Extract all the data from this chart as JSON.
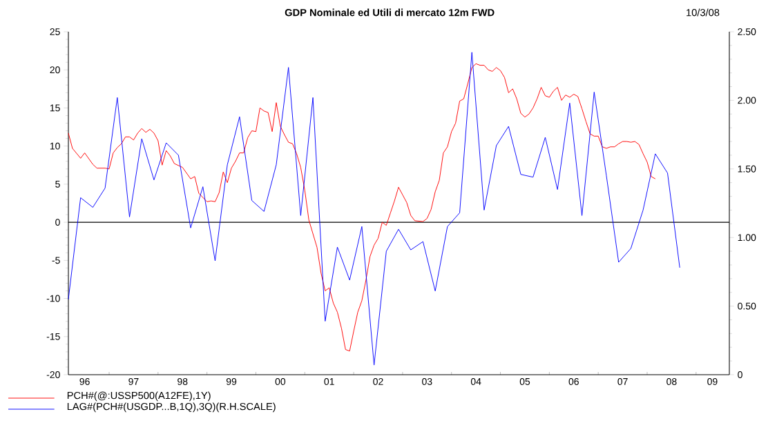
{
  "chart_data": {
    "type": "line",
    "title": "GDP Nominale ed Utili di mercato 12m FWD",
    "annotations": [
      "10/3/08"
    ],
    "xlim": [
      "1996-03-01",
      "2009-09-06"
    ],
    "xticks": [
      {
        "value": "1996-07",
        "label": "96"
      },
      {
        "value": "1997-01-01",
        "label": null
      },
      {
        "value": "1997-07",
        "label": "97"
      },
      {
        "value": "1998-01-01",
        "label": null
      },
      {
        "value": "1998-07",
        "label": "98"
      },
      {
        "value": "1999-01-01",
        "label": null
      },
      {
        "value": "1999-07",
        "label": "99"
      },
      {
        "value": "2000-01-01",
        "label": null
      },
      {
        "value": "2000-07",
        "label": "00"
      },
      {
        "value": "2001-01-01",
        "label": null
      },
      {
        "value": "2001-07",
        "label": "01"
      },
      {
        "value": "2002-01-01",
        "label": null
      },
      {
        "value": "2002-07",
        "label": "02"
      },
      {
        "value": "2003-01-01",
        "label": null
      },
      {
        "value": "2003-07",
        "label": "03"
      },
      {
        "value": "2004-01-01",
        "label": null
      },
      {
        "value": "2004-07",
        "label": "04"
      },
      {
        "value": "2005-01-01",
        "label": null
      },
      {
        "value": "2005-07",
        "label": "05"
      },
      {
        "value": "2006-01-01",
        "label": null
      },
      {
        "value": "2006-07",
        "label": "06"
      },
      {
        "value": "2007-01-01",
        "label": null
      },
      {
        "value": "2007-07",
        "label": "07"
      },
      {
        "value": "2008-01-01",
        "label": null
      },
      {
        "value": "2008-07",
        "label": "08"
      },
      {
        "value": "2009-01-01",
        "label": null
      },
      {
        "value": "2009-05",
        "label": "09"
      }
    ],
    "ylim": [
      -20,
      25
    ],
    "yticks": [
      -20,
      -15,
      -10,
      -5,
      0,
      5,
      10,
      15,
      20,
      25
    ],
    "y2lim": [
      0,
      2.5
    ],
    "y2ticks": [
      0,
      {
        "value": 0.5,
        "label": "0.50"
      },
      {
        "value": 1.0,
        "label": "1.00"
      },
      {
        "value": 1.5,
        "label": "1.50"
      },
      {
        "value": 2.0,
        "label": "2.00"
      },
      {
        "value": 2.5,
        "label": "2.50"
      }
    ],
    "ref_lines": [
      {
        "axis": "y",
        "value": 0,
        "color": "#000000"
      }
    ],
    "legend": "bottom left",
    "series": [
      {
        "name": "PCH#(@:USSP500(A12FE),1Y)",
        "color": "#ff0000",
        "x": [
          "1996-03",
          "1996-04",
          "1996-06",
          "1996-07",
          "1996-09",
          "1996-10",
          "1996-12",
          "1997-01",
          "1997-02",
          "1997-03",
          "1997-04",
          "1997-05",
          "1997-06",
          "1997-07",
          "1997-08",
          "1997-09",
          "1997-10",
          "1997-11",
          "1997-12",
          "1998-01",
          "1998-02",
          "1998-03",
          "1998-04",
          "1998-05",
          "1998-07",
          "1998-09",
          "1998-10",
          "1998-11",
          "1999-01",
          "1999-02",
          "1999-03",
          "1999-04",
          "1999-05",
          "1999-06",
          "1999-07",
          "1999-08",
          "1999-09",
          "1999-10",
          "1999-11",
          "1999-12",
          "2000-01",
          "2000-02",
          "2000-03",
          "2000-04",
          "2000-05",
          "2000-06",
          "2000-07",
          "2000-08",
          "2000-09",
          "2000-10",
          "2000-11",
          "2000-12",
          "2001-01",
          "2001-02",
          "2001-04",
          "2001-05",
          "2001-06",
          "2001-07",
          "2001-08",
          "2001-09",
          "2001-10",
          "2001-11",
          "2001-12",
          "2002-01",
          "2002-02",
          "2002-03",
          "2002-04",
          "2002-05",
          "2002-06",
          "2002-07",
          "2002-08",
          "2002-09",
          "2002-10",
          "2002-11",
          "2002-12",
          "2003-01",
          "2003-02",
          "2003-03",
          "2003-04",
          "2003-06",
          "2003-07",
          "2003-08",
          "2003-09",
          "2003-10",
          "2003-11",
          "2003-12",
          "2004-01",
          "2004-02",
          "2004-03",
          "2004-04",
          "2004-05",
          "2004-06",
          "2004-07",
          "2004-08",
          "2004-09",
          "2004-10",
          "2004-11",
          "2004-12",
          "2005-01",
          "2005-02",
          "2005-03",
          "2005-04",
          "2005-05",
          "2005-06",
          "2005-07",
          "2005-08",
          "2005-09",
          "2005-10",
          "2005-11",
          "2005-12",
          "2006-01",
          "2006-02",
          "2006-03",
          "2006-04",
          "2006-05",
          "2006-06",
          "2006-07",
          "2006-08",
          "2006-09",
          "2006-10",
          "2006-11",
          "2006-12",
          "2007-01",
          "2007-02",
          "2007-03",
          "2007-04",
          "2007-05",
          "2007-06",
          "2007-07",
          "2007-08",
          "2007-09",
          "2007-10",
          "2007-11",
          "2007-12",
          "2008-01",
          "2008-02",
          "2008-03"
        ],
        "values": [
          11.7,
          9.7,
          8.4,
          9.1,
          7.6,
          7.1,
          7.1,
          7.0,
          9.1,
          9.8,
          10.3,
          11.2,
          11.2,
          10.8,
          11.7,
          12.3,
          11.8,
          12.2,
          11.7,
          10.7,
          7.5,
          9.4,
          8.7,
          7.7,
          7.2,
          5.7,
          6.0,
          3.8,
          2.7,
          2.8,
          2.7,
          3.9,
          6.6,
          5.2,
          7.1,
          8.0,
          9.1,
          9.1,
          11.1,
          12.0,
          11.9,
          15.0,
          14.6,
          14.4,
          11.9,
          15.7,
          12.6,
          11.5,
          10.5,
          10.3,
          9.0,
          7.2,
          4.2,
          0.3,
          -3.3,
          -6.7,
          -9.0,
          -8.6,
          -10.6,
          -11.8,
          -13.9,
          -16.7,
          -16.9,
          -14.3,
          -11.8,
          -10.3,
          -7.6,
          -4.5,
          -3.0,
          -2.1,
          0.0,
          -0.4,
          1.2,
          2.8,
          4.6,
          3.6,
          2.6,
          0.9,
          0.2,
          0.1,
          0.5,
          1.7,
          4.0,
          5.5,
          9.1,
          9.9,
          11.9,
          13.0,
          15.9,
          16.2,
          18.2,
          20.3,
          20.8,
          20.6,
          20.6,
          20.0,
          19.8,
          20.3,
          19.9,
          19.0,
          17.0,
          17.5,
          16.2,
          14.3,
          13.8,
          14.2,
          15.0,
          16.2,
          17.7,
          16.6,
          16.4,
          17.2,
          17.7,
          16.0,
          16.7,
          16.4,
          16.8,
          16.5,
          14.9,
          13.2,
          11.6,
          11.3,
          11.3,
          9.9,
          9.7,
          9.9,
          9.9,
          10.3,
          10.6,
          10.6,
          10.5,
          10.6,
          10.2,
          9.0,
          7.9,
          6.0,
          5.7
        ]
      },
      {
        "name": "LAG#(PCH#(USGDP...B,1Q),3Q)(R.H.SCALE)",
        "color": "#0000ff",
        "axis": "y2",
        "x": [
          "1996-03",
          "1996-06",
          "1996-09",
          "1996-12",
          "1997-03",
          "1997-06",
          "1997-09",
          "1997-12",
          "1998-03",
          "1998-06",
          "1998-09",
          "1998-12",
          "1999-03",
          "1999-06",
          "1999-09",
          "1999-12",
          "2000-03",
          "2000-06",
          "2000-09",
          "2000-12",
          "2001-03",
          "2001-06",
          "2001-09",
          "2001-12",
          "2002-03",
          "2002-06",
          "2002-09",
          "2002-12",
          "2003-03",
          "2003-06",
          "2003-09",
          "2003-12",
          "2004-03",
          "2004-06",
          "2004-09",
          "2004-12",
          "2005-03",
          "2005-06",
          "2005-09",
          "2005-12",
          "2006-03",
          "2006-06",
          "2006-09",
          "2006-12",
          "2007-03",
          "2007-06",
          "2007-09",
          "2007-12",
          "2008-03",
          "2008-06",
          "2008-09"
        ],
        "values": [
          0.55,
          1.29,
          1.22,
          1.36,
          2.02,
          1.15,
          1.72,
          1.42,
          1.69,
          1.6,
          1.07,
          1.37,
          0.83,
          1.53,
          1.88,
          1.27,
          1.19,
          1.53,
          2.24,
          1.16,
          2.02,
          0.39,
          0.93,
          0.69,
          1.08,
          0.07,
          0.9,
          1.06,
          0.91,
          0.97,
          0.61,
          1.08,
          1.18,
          2.35,
          1.2,
          1.67,
          1.81,
          1.46,
          1.44,
          1.73,
          1.35,
          1.98,
          1.16,
          2.06,
          1.45,
          0.82,
          0.92,
          1.2,
          1.61,
          1.47,
          0.78
        ]
      }
    ]
  }
}
